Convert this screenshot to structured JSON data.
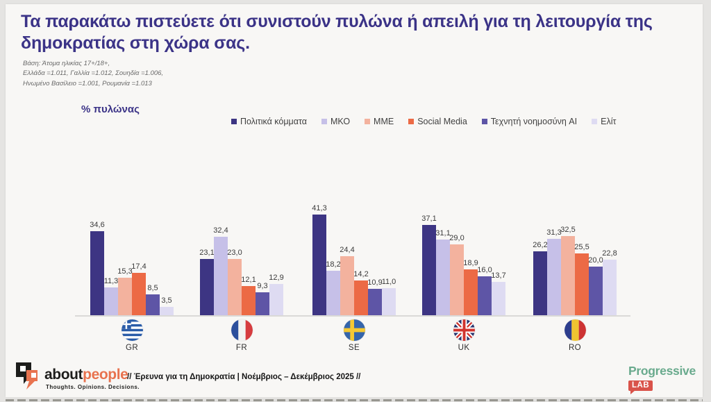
{
  "header": {
    "title": "Τα παρακάτω πιστεύετε ότι συνιστούν πυλώνα ή απειλή για τη λειτουργία της δημοκρατίας στη χώρα σας.",
    "base_lines": [
      "Βάση: Άτομα ηλικίας 17+/18+,",
      "Ελλάδα =1.011, Γαλλία =1.012, Σουηδία =1.006,",
      "Ηνωμένο Βασίλειο =1.001, Ρουμανία =1.013"
    ]
  },
  "chart_data": {
    "type": "bar",
    "title": "% πυλώνας",
    "categories": [
      "GR",
      "FR",
      "SE",
      "UK",
      "RO"
    ],
    "series": [
      {
        "name": "Πολιτικά κόμματα",
        "color": "#3d3583",
        "values": [
          34.6,
          23.1,
          41.3,
          37.1,
          26.2
        ]
      },
      {
        "name": "ΜΚΟ",
        "color": "#c6c0e8",
        "values": [
          11.3,
          32.4,
          18.2,
          31.1,
          31.3
        ]
      },
      {
        "name": "ΜΜΕ",
        "color": "#f3b29e",
        "values": [
          15.3,
          23.0,
          24.4,
          29.0,
          32.5
        ]
      },
      {
        "name": "Social Media",
        "color": "#ec6a45",
        "values": [
          17.4,
          12.1,
          14.2,
          18.9,
          25.5
        ]
      },
      {
        "name": "Τεχνητή νοημοσύνη AI",
        "color": "#5e55a6",
        "values": [
          8.5,
          9.3,
          10.9,
          16.0,
          20.0
        ]
      },
      {
        "name": "Ελίτ",
        "color": "#dedbf2",
        "values": [
          3.5,
          12.9,
          11.0,
          13.7,
          22.8
        ]
      }
    ],
    "ylim": [
      0,
      45
    ],
    "grid": false,
    "legend_position": "top",
    "value_labels": "one decimal, comma separator",
    "xlabel": "",
    "ylabel": "% πυλώνας"
  },
  "footer": {
    "logo_black": "about",
    "logo_orange": "people",
    "logo_tagline": "Thoughts. Opinions. Decisions.",
    "survey_note": "// Έρευνα για τη Δημοκρατία | Νοέμβριος – Δεκέμβριος 2025 //",
    "brand_right_name": "Progressive",
    "brand_right_sub": "LAB"
  },
  "colors": {
    "title_text": "#3b3387",
    "slide_bg": "#f8f7f5",
    "baseline": "#dad9d7",
    "brand_green": "#69aa8d",
    "brand_red": "#d9534a",
    "logo_orange": "#e8734f"
  }
}
